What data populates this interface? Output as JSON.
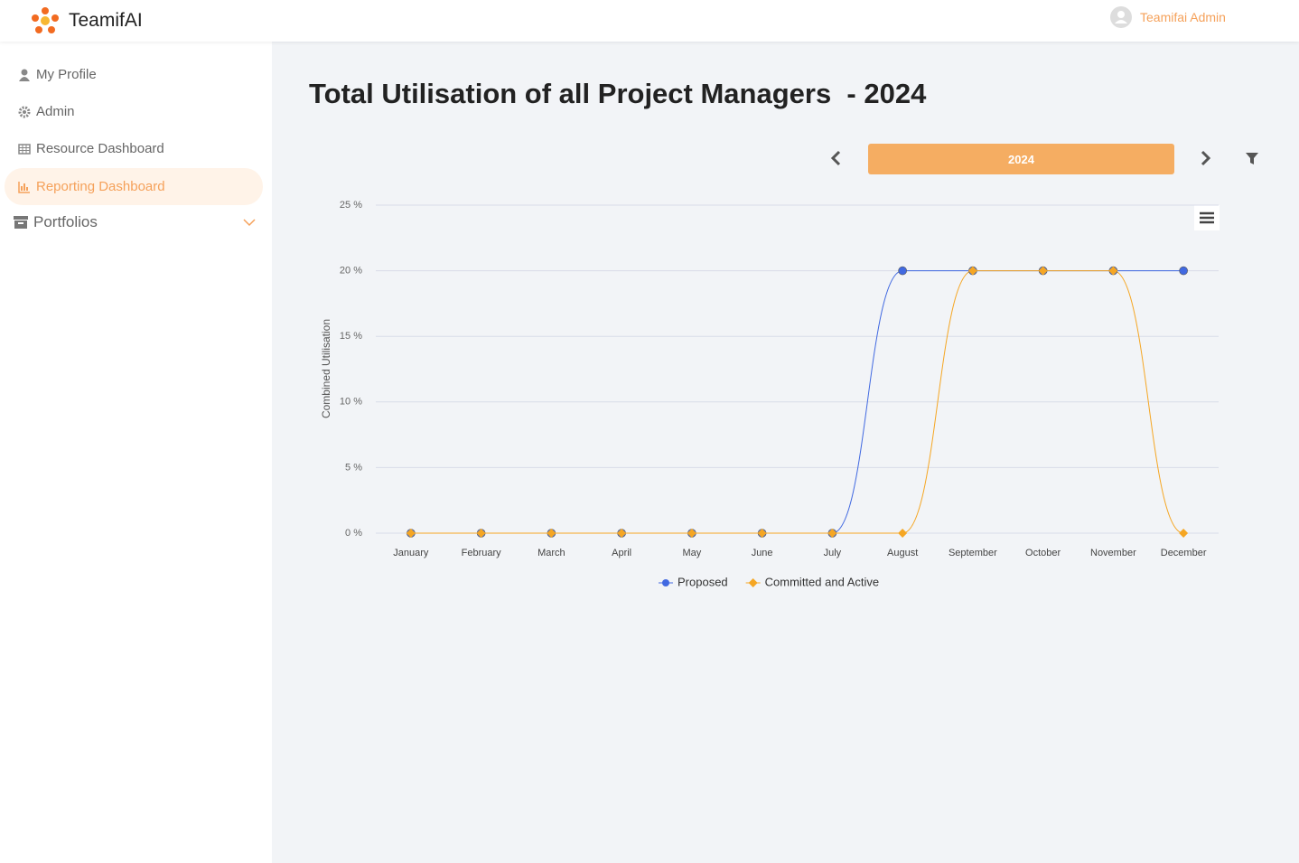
{
  "header": {
    "brand": "TeamifAI",
    "user": "Teamifai Admin"
  },
  "sidebar": {
    "items": [
      "My Profile",
      "Admin",
      "Resource Dashboard",
      "Reporting Dashboard",
      "Portfolios"
    ]
  },
  "page": {
    "title": "Total Utilisation of all Project Managers  - 2024",
    "year": "2024"
  },
  "chart_data": {
    "type": "line",
    "y_label": "Combined Utilisation",
    "categories": [
      "January",
      "February",
      "March",
      "April",
      "May",
      "June",
      "July",
      "August",
      "September",
      "October",
      "November",
      "December"
    ],
    "series": [
      {
        "name": "Proposed",
        "color": "#4169e1",
        "marker": "circle",
        "values": [
          0,
          0,
          0,
          0,
          0,
          0,
          0,
          20,
          20,
          20,
          20,
          20
        ]
      },
      {
        "name": "Committed and Active",
        "color": "#f5a623",
        "marker": "diamond",
        "values": [
          0,
          0,
          0,
          0,
          0,
          0,
          0,
          0,
          20,
          20,
          20,
          0
        ]
      }
    ],
    "ylim": [
      0,
      25
    ],
    "yticks": [
      {
        "value": 0,
        "label": "0 %"
      },
      {
        "value": 5,
        "label": "5 %"
      },
      {
        "value": 10,
        "label": "10 %"
      },
      {
        "value": 15,
        "label": "15 %"
      },
      {
        "value": 20,
        "label": "20 %"
      },
      {
        "value": 25,
        "label": "25 %"
      }
    ],
    "grid": true,
    "smooth": true
  }
}
